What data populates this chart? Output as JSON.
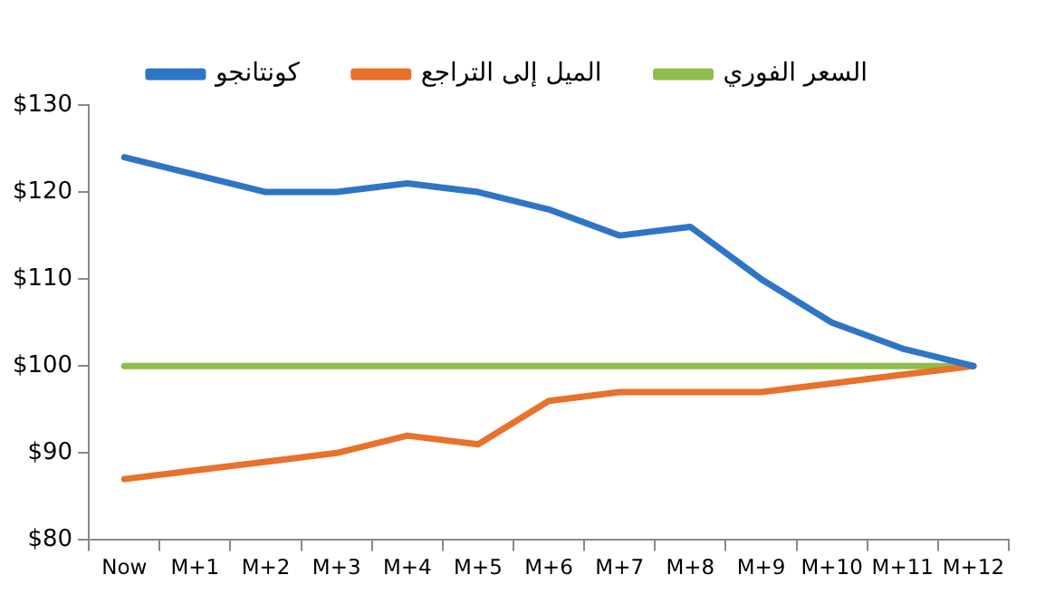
{
  "chart_data": {
    "type": "line",
    "categories": [
      "Now",
      "M+1",
      "M+2",
      "M+3",
      "M+4",
      "M+5",
      "M+6",
      "M+7",
      "M+8",
      "M+9",
      "M+10",
      "M+11",
      "M+12"
    ],
    "series": [
      {
        "name": "كونتانجو",
        "color": "#2e75c6",
        "values": [
          124,
          122,
          120,
          120,
          121,
          120,
          118,
          115,
          116,
          110,
          105,
          102,
          100
        ]
      },
      {
        "name": "الميل إلى التراجع",
        "color": "#e8712b",
        "values": [
          87,
          88,
          89,
          90,
          92,
          91,
          96,
          97,
          97,
          97,
          98,
          99,
          100
        ]
      },
      {
        "name": "السعر الفوري",
        "color": "#8fbc4b",
        "values": [
          100,
          100,
          100,
          100,
          100,
          100,
          100,
          100,
          100,
          100,
          100,
          100,
          100
        ]
      }
    ],
    "ylim": [
      80,
      130
    ],
    "yticks": [
      {
        "value": 80,
        "label": "$80"
      },
      {
        "value": 90,
        "label": "$90"
      },
      {
        "value": 100,
        "label": "$100"
      },
      {
        "value": 110,
        "label": "$110"
      },
      {
        "value": 120,
        "label": "$120"
      },
      {
        "value": 130,
        "label": "$130"
      }
    ],
    "grid": false,
    "legend": "top",
    "marker": "none",
    "line_style": "solid"
  }
}
